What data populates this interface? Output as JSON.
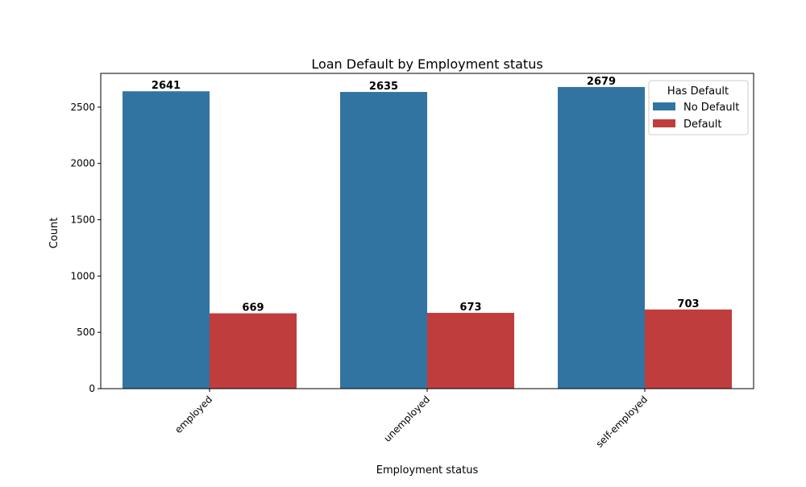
{
  "chart_data": {
    "type": "bar",
    "title": "Loan Default by Employment status",
    "xlabel": "Employment status",
    "ylabel": "Count",
    "categories": [
      "employed",
      "unemployed",
      "self-employed"
    ],
    "series": [
      {
        "name": "No Default",
        "color": "#3274a1",
        "values": [
          2641,
          2635,
          2679
        ]
      },
      {
        "name": "Default",
        "color": "#c03d3e",
        "values": [
          669,
          673,
          703
        ]
      }
    ],
    "ylim": [
      0,
      2800
    ],
    "yticks": [
      0,
      500,
      1000,
      1500,
      2000,
      2500
    ],
    "legend": {
      "title": "Has Default",
      "placement": "top-right"
    },
    "grid": false
  }
}
